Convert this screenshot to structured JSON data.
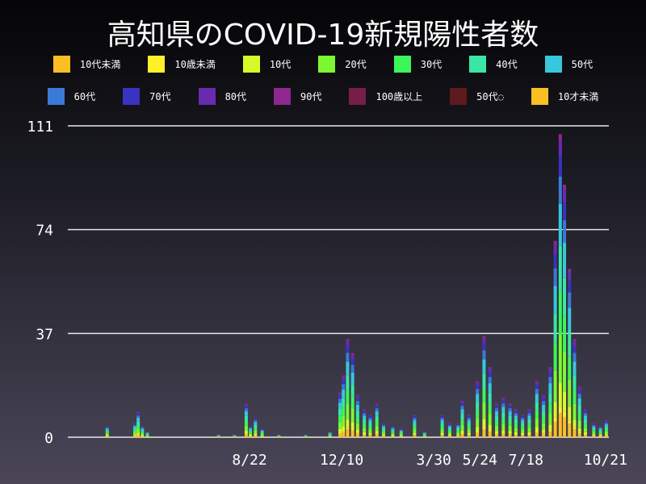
{
  "chart_data": {
    "type": "bar",
    "stacked": true,
    "title": "高知県のCOVID-19新規陽性者数",
    "xlabel": "",
    "ylabel": "",
    "x_range": [
      "2020-01-18",
      "2021-10-25"
    ],
    "ylim": [
      0,
      111
    ],
    "yticks": [
      0,
      37,
      74,
      111
    ],
    "grid": true,
    "legend_position": "top",
    "xticks": [
      {
        "date": "2020-08-22",
        "label": "8/22"
      },
      {
        "date": "2020-12-10",
        "label": "12/10"
      },
      {
        "date": "2021-03-30",
        "label": "3/30"
      },
      {
        "date": "2021-05-24",
        "label": "5/24"
      },
      {
        "date": "2021-07-18",
        "label": "7/18"
      },
      {
        "date": "2021-10-21",
        "label": "10/21"
      }
    ],
    "series": [
      {
        "name": "10代未満",
        "color": "#fbbf24"
      },
      {
        "name": "10歳未満",
        "color": "#fef12a"
      },
      {
        "name": "10代",
        "color": "#d9f82a"
      },
      {
        "name": "20代",
        "color": "#7cf830"
      },
      {
        "name": "30代",
        "color": "#3af659"
      },
      {
        "name": "40代",
        "color": "#3ae6a6"
      },
      {
        "name": "50代",
        "color": "#36c8dc"
      },
      {
        "name": "60代",
        "color": "#3a7ad6"
      },
      {
        "name": "70代",
        "color": "#3a32c2"
      },
      {
        "name": "80代",
        "color": "#6a2ab0"
      },
      {
        "name": "90代",
        "color": "#8e2890"
      },
      {
        "name": "100歳以上",
        "color": "#761e4a"
      },
      {
        "name": "50代◌",
        "color": "#5e1a1c"
      },
      {
        "name": "10才未満",
        "color": "#fbbf24"
      }
    ],
    "totals": [
      [
        "2020-03-05",
        4
      ],
      [
        "2020-04-07",
        5
      ],
      [
        "2020-04-11",
        9
      ],
      [
        "2020-04-16",
        4
      ],
      [
        "2020-04-22",
        2
      ],
      [
        "2020-07-16",
        1
      ],
      [
        "2020-08-04",
        1
      ],
      [
        "2020-08-18",
        12
      ],
      [
        "2020-08-23",
        4
      ],
      [
        "2020-08-29",
        7
      ],
      [
        "2020-09-06",
        3
      ],
      [
        "2020-09-26",
        1
      ],
      [
        "2020-10-28",
        1
      ],
      [
        "2020-11-26",
        2
      ],
      [
        "2020-12-08",
        16
      ],
      [
        "2020-12-12",
        22
      ],
      [
        "2020-12-17",
        35
      ],
      [
        "2020-12-23",
        30
      ],
      [
        "2020-12-29",
        15
      ],
      [
        "2021-01-06",
        10
      ],
      [
        "2021-01-13",
        8
      ],
      [
        "2021-01-21",
        12
      ],
      [
        "2021-01-29",
        5
      ],
      [
        "2021-02-09",
        4
      ],
      [
        "2021-02-19",
        3
      ],
      [
        "2021-03-07",
        8
      ],
      [
        "2021-03-19",
        2
      ],
      [
        "2021-04-09",
        8
      ],
      [
        "2021-04-18",
        5
      ],
      [
        "2021-04-28",
        5
      ],
      [
        "2021-05-03",
        13
      ],
      [
        "2021-05-11",
        8
      ],
      [
        "2021-05-21",
        20
      ],
      [
        "2021-05-29",
        36
      ],
      [
        "2021-06-05",
        25
      ],
      [
        "2021-06-13",
        12
      ],
      [
        "2021-06-21",
        14
      ],
      [
        "2021-06-29",
        12
      ],
      [
        "2021-07-06",
        10
      ],
      [
        "2021-07-14",
        8
      ],
      [
        "2021-07-22",
        10
      ],
      [
        "2021-07-31",
        20
      ],
      [
        "2021-08-08",
        15
      ],
      [
        "2021-08-16",
        25
      ],
      [
        "2021-08-22",
        70
      ],
      [
        "2021-08-28",
        108
      ],
      [
        "2021-09-02",
        90
      ],
      [
        "2021-09-08",
        60
      ],
      [
        "2021-09-14",
        35
      ],
      [
        "2021-09-20",
        18
      ],
      [
        "2021-09-27",
        10
      ],
      [
        "2021-10-07",
        5
      ],
      [
        "2021-10-15",
        4
      ],
      [
        "2021-10-22",
        6
      ]
    ]
  }
}
